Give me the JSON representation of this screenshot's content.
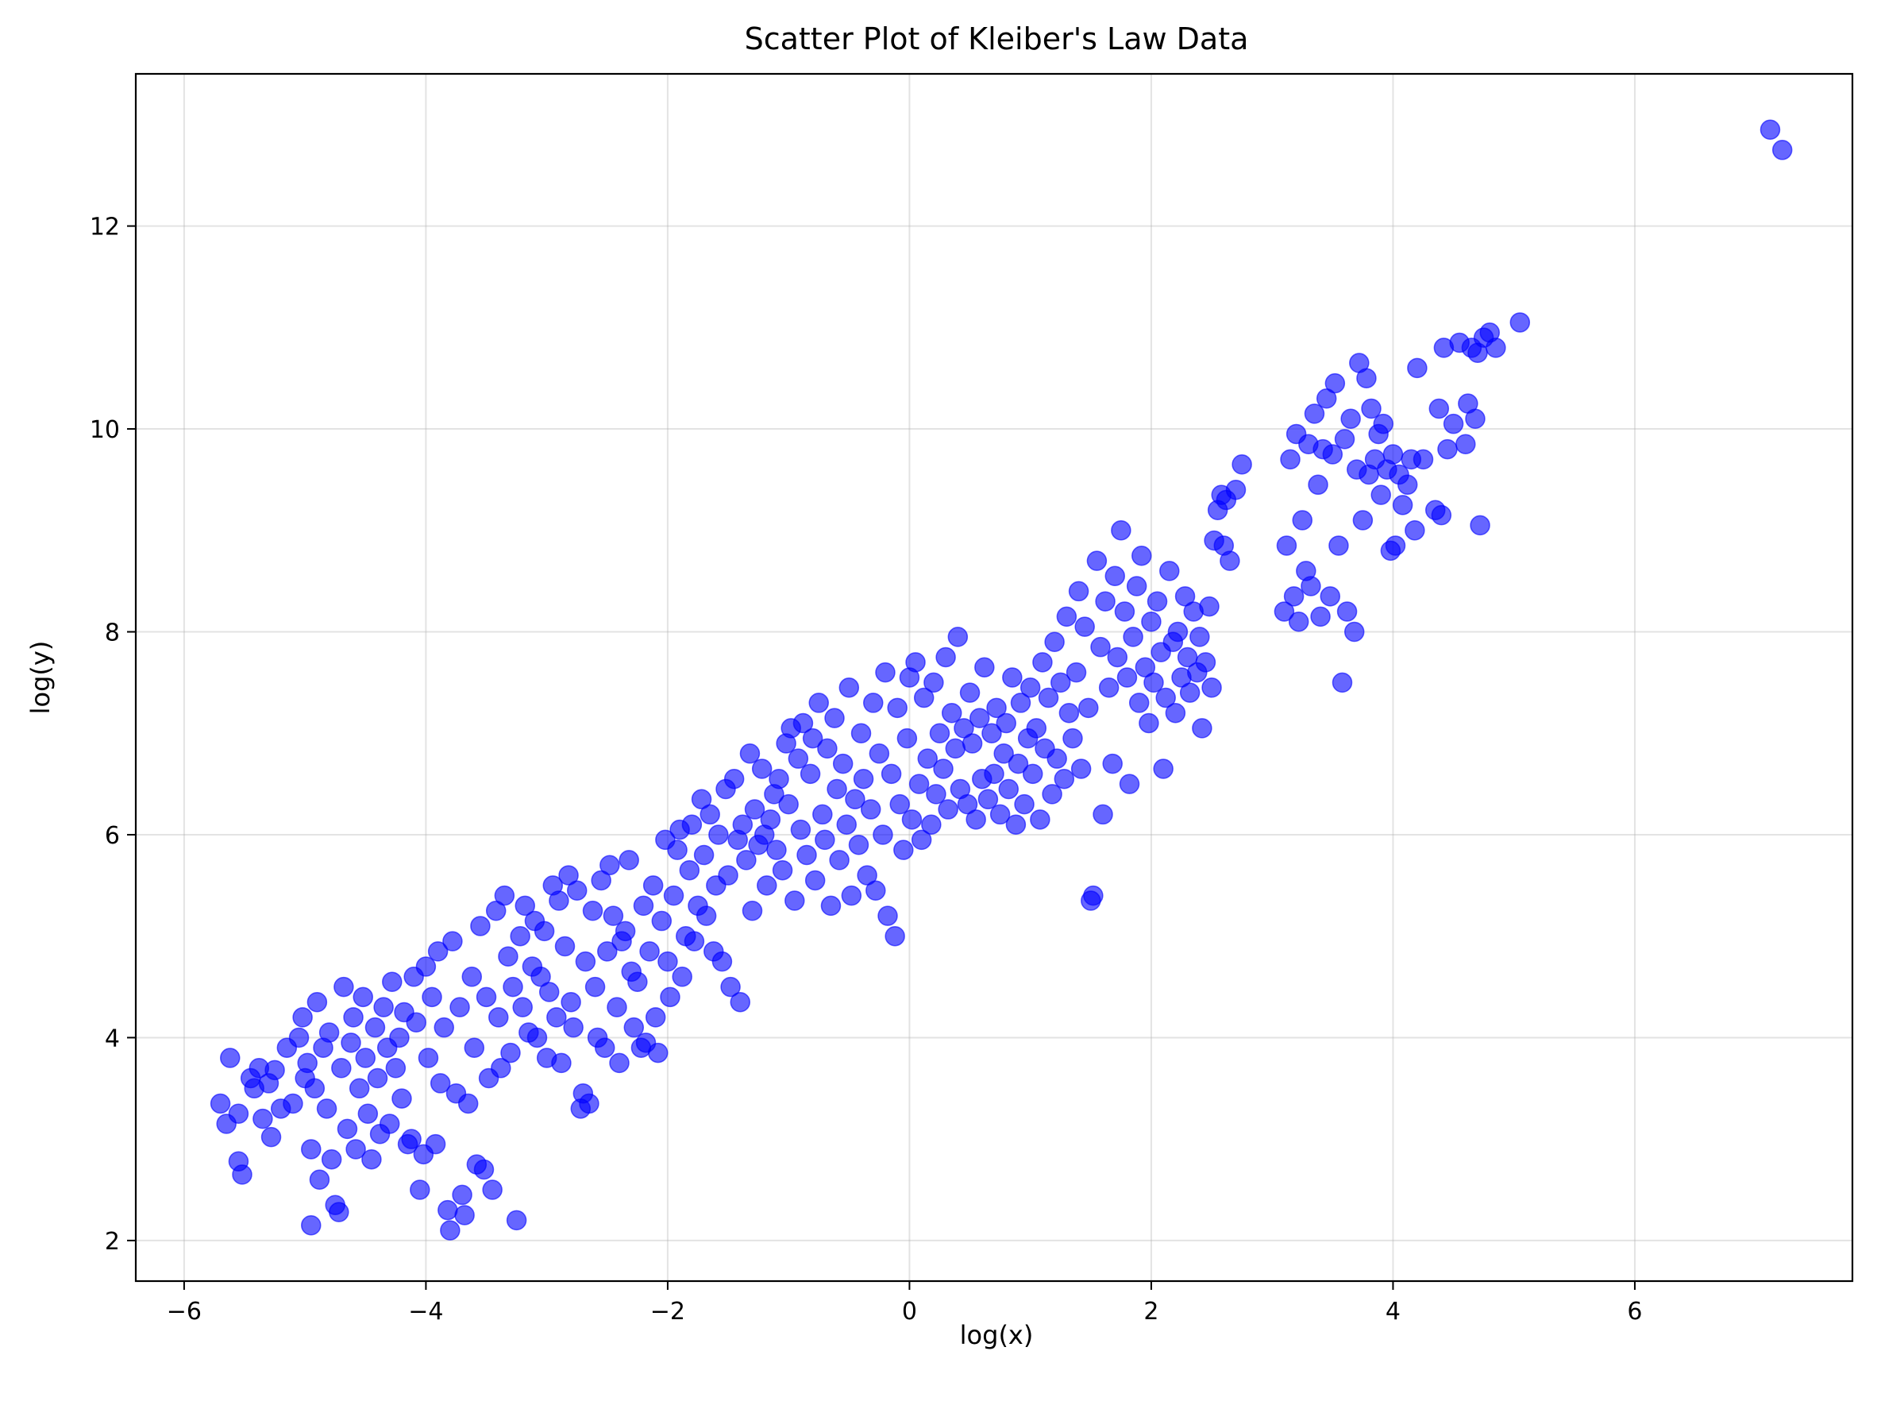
{
  "chart_data": {
    "type": "scatter",
    "title": "Scatter Plot of Kleiber's Law Data",
    "xlabel": "log(x)",
    "ylabel": "log(y)",
    "xlim": [
      -6.4,
      7.8
    ],
    "ylim": [
      1.6,
      13.5
    ],
    "xticks": [
      -6,
      -4,
      -2,
      0,
      2,
      4,
      6
    ],
    "xtick_labels": [
      "−6",
      "−4",
      "−2",
      "0",
      "2",
      "4",
      "6"
    ],
    "yticks": [
      2,
      4,
      6,
      8,
      10,
      12
    ],
    "ytick_labels": [
      "2",
      "4",
      "6",
      "8",
      "10",
      "12"
    ],
    "grid": true,
    "legend": "none",
    "marker_color": "#0000ff",
    "marker_alpha": 0.6,
    "points": [
      [
        -5.7,
        3.35
      ],
      [
        -5.65,
        3.15
      ],
      [
        -5.62,
        3.8
      ],
      [
        -5.55,
        3.25
      ],
      [
        -5.55,
        2.78
      ],
      [
        -5.52,
        2.65
      ],
      [
        -5.45,
        3.6
      ],
      [
        -5.42,
        3.5
      ],
      [
        -5.38,
        3.7
      ],
      [
        -5.35,
        3.2
      ],
      [
        -5.3,
        3.55
      ],
      [
        -5.28,
        3.02
      ],
      [
        -5.25,
        3.68
      ],
      [
        -5.2,
        3.3
      ],
      [
        -5.15,
        3.9
      ],
      [
        -5.1,
        3.35
      ],
      [
        -5.05,
        4.0
      ],
      [
        -5.02,
        4.2
      ],
      [
        -5.0,
        3.6
      ],
      [
        -4.98,
        3.75
      ],
      [
        -4.95,
        2.9
      ],
      [
        -4.95,
        2.15
      ],
      [
        -4.92,
        3.5
      ],
      [
        -4.9,
        4.35
      ],
      [
        -4.88,
        2.6
      ],
      [
        -4.85,
        3.9
      ],
      [
        -4.82,
        3.3
      ],
      [
        -4.8,
        4.05
      ],
      [
        -4.78,
        2.8
      ],
      [
        -4.75,
        2.35
      ],
      [
        -4.72,
        2.28
      ],
      [
        -4.7,
        3.7
      ],
      [
        -4.68,
        4.5
      ],
      [
        -4.65,
        3.1
      ],
      [
        -4.62,
        3.95
      ],
      [
        -4.6,
        4.2
      ],
      [
        -4.58,
        2.9
      ],
      [
        -4.55,
        3.5
      ],
      [
        -4.52,
        4.4
      ],
      [
        -4.5,
        3.8
      ],
      [
        -4.48,
        3.25
      ],
      [
        -4.45,
        2.8
      ],
      [
        -4.42,
        4.1
      ],
      [
        -4.4,
        3.6
      ],
      [
        -4.38,
        3.05
      ],
      [
        -4.35,
        4.3
      ],
      [
        -4.32,
        3.9
      ],
      [
        -4.3,
        3.15
      ],
      [
        -4.28,
        4.55
      ],
      [
        -4.25,
        3.7
      ],
      [
        -4.22,
        4.0
      ],
      [
        -4.2,
        3.4
      ],
      [
        -4.18,
        4.25
      ],
      [
        -4.15,
        2.95
      ],
      [
        -4.12,
        3.0
      ],
      [
        -4.1,
        4.6
      ],
      [
        -4.08,
        4.15
      ],
      [
        -4.05,
        2.5
      ],
      [
        -4.02,
        2.85
      ],
      [
        -4.0,
        4.7
      ],
      [
        -3.98,
        3.8
      ],
      [
        -3.95,
        4.4
      ],
      [
        -3.92,
        2.95
      ],
      [
        -3.9,
        4.85
      ],
      [
        -3.88,
        3.55
      ],
      [
        -3.85,
        4.1
      ],
      [
        -3.82,
        2.3
      ],
      [
        -3.8,
        2.1
      ],
      [
        -3.78,
        4.95
      ],
      [
        -3.75,
        3.45
      ],
      [
        -3.72,
        4.3
      ],
      [
        -3.7,
        2.45
      ],
      [
        -3.68,
        2.25
      ],
      [
        -3.65,
        3.35
      ],
      [
        -3.62,
        4.6
      ],
      [
        -3.6,
        3.9
      ],
      [
        -3.58,
        2.75
      ],
      [
        -3.55,
        5.1
      ],
      [
        -3.52,
        2.7
      ],
      [
        -3.5,
        4.4
      ],
      [
        -3.48,
        3.6
      ],
      [
        -3.45,
        2.5
      ],
      [
        -3.42,
        5.25
      ],
      [
        -3.4,
        4.2
      ],
      [
        -3.38,
        3.7
      ],
      [
        -3.35,
        5.4
      ],
      [
        -3.32,
        4.8
      ],
      [
        -3.3,
        3.85
      ],
      [
        -3.28,
        4.5
      ],
      [
        -3.25,
        2.2
      ],
      [
        -3.22,
        5.0
      ],
      [
        -3.2,
        4.3
      ],
      [
        -3.18,
        5.3
      ],
      [
        -3.15,
        4.05
      ],
      [
        -3.12,
        4.7
      ],
      [
        -3.1,
        5.15
      ],
      [
        -3.08,
        4.0
      ],
      [
        -3.05,
        4.6
      ],
      [
        -3.02,
        5.05
      ],
      [
        -3.0,
        3.8
      ],
      [
        -2.98,
        4.45
      ],
      [
        -2.95,
        5.5
      ],
      [
        -2.92,
        4.2
      ],
      [
        -2.9,
        5.35
      ],
      [
        -2.88,
        3.75
      ],
      [
        -2.85,
        4.9
      ],
      [
        -2.82,
        5.6
      ],
      [
        -2.8,
        4.35
      ],
      [
        -2.78,
        4.1
      ],
      [
        -2.75,
        5.45
      ],
      [
        -2.72,
        3.3
      ],
      [
        -2.7,
        3.45
      ],
      [
        -2.68,
        4.75
      ],
      [
        -2.65,
        3.35
      ],
      [
        -2.62,
        5.25
      ],
      [
        -2.6,
        4.5
      ],
      [
        -2.58,
        4.0
      ],
      [
        -2.55,
        5.55
      ],
      [
        -2.52,
        3.9
      ],
      [
        -2.5,
        4.85
      ],
      [
        -2.48,
        5.7
      ],
      [
        -2.45,
        5.2
      ],
      [
        -2.42,
        4.3
      ],
      [
        -2.4,
        3.75
      ],
      [
        -2.38,
        4.95
      ],
      [
        -2.35,
        5.05
      ],
      [
        -2.32,
        5.75
      ],
      [
        -2.3,
        4.65
      ],
      [
        -2.28,
        4.1
      ],
      [
        -2.25,
        4.55
      ],
      [
        -2.22,
        3.9
      ],
      [
        -2.2,
        5.3
      ],
      [
        -2.18,
        3.95
      ],
      [
        -2.15,
        4.85
      ],
      [
        -2.12,
        5.5
      ],
      [
        -2.1,
        4.2
      ],
      [
        -2.08,
        3.85
      ],
      [
        -2.05,
        5.15
      ],
      [
        -2.02,
        5.95
      ],
      [
        -2.0,
        4.75
      ],
      [
        -1.98,
        4.4
      ],
      [
        -1.95,
        5.4
      ],
      [
        -1.92,
        5.85
      ],
      [
        -1.9,
        6.05
      ],
      [
        -1.88,
        4.6
      ],
      [
        -1.85,
        5.0
      ],
      [
        -1.82,
        5.65
      ],
      [
        -1.8,
        6.1
      ],
      [
        -1.78,
        4.95
      ],
      [
        -1.75,
        5.3
      ],
      [
        -1.72,
        6.35
      ],
      [
        -1.7,
        5.8
      ],
      [
        -1.68,
        5.2
      ],
      [
        -1.65,
        6.2
      ],
      [
        -1.62,
        4.85
      ],
      [
        -1.6,
        5.5
      ],
      [
        -1.58,
        6.0
      ],
      [
        -1.55,
        4.75
      ],
      [
        -1.52,
        6.45
      ],
      [
        -1.5,
        5.6
      ],
      [
        -1.48,
        4.5
      ],
      [
        -1.45,
        6.55
      ],
      [
        -1.42,
        5.95
      ],
      [
        -1.4,
        4.35
      ],
      [
        -1.38,
        6.1
      ],
      [
        -1.35,
        5.75
      ],
      [
        -1.32,
        6.8
      ],
      [
        -1.3,
        5.25
      ],
      [
        -1.28,
        6.25
      ],
      [
        -1.25,
        5.9
      ],
      [
        -1.22,
        6.65
      ],
      [
        -1.2,
        6.0
      ],
      [
        -1.18,
        5.5
      ],
      [
        -1.15,
        6.15
      ],
      [
        -1.12,
        6.4
      ],
      [
        -1.1,
        5.85
      ],
      [
        -1.08,
        6.55
      ],
      [
        -1.05,
        5.65
      ],
      [
        -1.02,
        6.9
      ],
      [
        -1.0,
        6.3
      ],
      [
        -0.98,
        7.05
      ],
      [
        -0.95,
        5.35
      ],
      [
        -0.92,
        6.75
      ],
      [
        -0.9,
        6.05
      ],
      [
        -0.88,
        7.1
      ],
      [
        -0.85,
        5.8
      ],
      [
        -0.82,
        6.6
      ],
      [
        -0.8,
        6.95
      ],
      [
        -0.78,
        5.55
      ],
      [
        -0.75,
        7.3
      ],
      [
        -0.72,
        6.2
      ],
      [
        -0.7,
        5.95
      ],
      [
        -0.68,
        6.85
      ],
      [
        -0.65,
        5.3
      ],
      [
        -0.62,
        7.15
      ],
      [
        -0.6,
        6.45
      ],
      [
        -0.58,
        5.75
      ],
      [
        -0.55,
        6.7
      ],
      [
        -0.52,
        6.1
      ],
      [
        -0.5,
        7.45
      ],
      [
        -0.48,
        5.4
      ],
      [
        -0.45,
        6.35
      ],
      [
        -0.42,
        5.9
      ],
      [
        -0.4,
        7.0
      ],
      [
        -0.38,
        6.55
      ],
      [
        -0.35,
        5.6
      ],
      [
        -0.32,
        6.25
      ],
      [
        -0.3,
        7.3
      ],
      [
        -0.28,
        5.45
      ],
      [
        -0.25,
        6.8
      ],
      [
        -0.22,
        6.0
      ],
      [
        -0.2,
        7.6
      ],
      [
        -0.18,
        5.2
      ],
      [
        -0.15,
        6.6
      ],
      [
        -0.12,
        5.0
      ],
      [
        -0.1,
        7.25
      ],
      [
        -0.08,
        6.3
      ],
      [
        -0.05,
        5.85
      ],
      [
        -0.02,
        6.95
      ],
      [
        0.0,
        7.55
      ],
      [
        0.02,
        6.15
      ],
      [
        0.05,
        7.7
      ],
      [
        0.08,
        6.5
      ],
      [
        0.1,
        5.95
      ],
      [
        0.12,
        7.35
      ],
      [
        0.15,
        6.75
      ],
      [
        0.18,
        6.1
      ],
      [
        0.2,
        7.5
      ],
      [
        0.22,
        6.4
      ],
      [
        0.25,
        7.0
      ],
      [
        0.28,
        6.65
      ],
      [
        0.3,
        7.75
      ],
      [
        0.32,
        6.25
      ],
      [
        0.35,
        7.2
      ],
      [
        0.38,
        6.85
      ],
      [
        0.4,
        7.95
      ],
      [
        0.42,
        6.45
      ],
      [
        0.45,
        7.05
      ],
      [
        0.48,
        6.3
      ],
      [
        0.5,
        7.4
      ],
      [
        0.52,
        6.9
      ],
      [
        0.55,
        6.15
      ],
      [
        0.58,
        7.15
      ],
      [
        0.6,
        6.55
      ],
      [
        0.62,
        7.65
      ],
      [
        0.65,
        6.35
      ],
      [
        0.68,
        7.0
      ],
      [
        0.7,
        6.6
      ],
      [
        0.72,
        7.25
      ],
      [
        0.75,
        6.2
      ],
      [
        0.78,
        6.8
      ],
      [
        0.8,
        7.1
      ],
      [
        0.82,
        6.45
      ],
      [
        0.85,
        7.55
      ],
      [
        0.88,
        6.1
      ],
      [
        0.9,
        6.7
      ],
      [
        0.92,
        7.3
      ],
      [
        0.95,
        6.3
      ],
      [
        0.98,
        6.95
      ],
      [
        1.0,
        7.45
      ],
      [
        1.02,
        6.6
      ],
      [
        1.05,
        7.05
      ],
      [
        1.08,
        6.15
      ],
      [
        1.1,
        7.7
      ],
      [
        1.12,
        6.85
      ],
      [
        1.15,
        7.35
      ],
      [
        1.18,
        6.4
      ],
      [
        1.2,
        7.9
      ],
      [
        1.22,
        6.75
      ],
      [
        1.25,
        7.5
      ],
      [
        1.28,
        6.55
      ],
      [
        1.3,
        8.15
      ],
      [
        1.32,
        7.2
      ],
      [
        1.35,
        6.95
      ],
      [
        1.38,
        7.6
      ],
      [
        1.4,
        8.4
      ],
      [
        1.42,
        6.65
      ],
      [
        1.45,
        8.05
      ],
      [
        1.48,
        7.25
      ],
      [
        1.5,
        5.35
      ],
      [
        1.52,
        5.4
      ],
      [
        1.55,
        8.7
      ],
      [
        1.58,
        7.85
      ],
      [
        1.6,
        6.2
      ],
      [
        1.62,
        8.3
      ],
      [
        1.65,
        7.45
      ],
      [
        1.68,
        6.7
      ],
      [
        1.7,
        8.55
      ],
      [
        1.72,
        7.75
      ],
      [
        1.75,
        9.0
      ],
      [
        1.78,
        8.2
      ],
      [
        1.8,
        7.55
      ],
      [
        1.82,
        6.5
      ],
      [
        1.85,
        7.95
      ],
      [
        1.88,
        8.45
      ],
      [
        1.9,
        7.3
      ],
      [
        1.92,
        8.75
      ],
      [
        1.95,
        7.65
      ],
      [
        1.98,
        7.1
      ],
      [
        2.0,
        8.1
      ],
      [
        2.02,
        7.5
      ],
      [
        2.05,
        8.3
      ],
      [
        2.08,
        7.8
      ],
      [
        2.1,
        6.65
      ],
      [
        2.12,
        7.35
      ],
      [
        2.15,
        8.6
      ],
      [
        2.18,
        7.9
      ],
      [
        2.2,
        7.2
      ],
      [
        2.22,
        8.0
      ],
      [
        2.25,
        7.55
      ],
      [
        2.28,
        8.35
      ],
      [
        2.3,
        7.75
      ],
      [
        2.32,
        7.4
      ],
      [
        2.35,
        8.2
      ],
      [
        2.38,
        7.6
      ],
      [
        2.4,
        7.95
      ],
      [
        2.42,
        7.05
      ],
      [
        2.45,
        7.7
      ],
      [
        2.48,
        8.25
      ],
      [
        2.5,
        7.45
      ],
      [
        2.52,
        8.9
      ],
      [
        2.55,
        9.2
      ],
      [
        2.58,
        9.35
      ],
      [
        2.6,
        8.85
      ],
      [
        2.62,
        9.3
      ],
      [
        2.65,
        8.7
      ],
      [
        2.7,
        9.4
      ],
      [
        2.75,
        9.65
      ],
      [
        3.1,
        8.2
      ],
      [
        3.12,
        8.85
      ],
      [
        3.15,
        9.7
      ],
      [
        3.18,
        8.35
      ],
      [
        3.2,
        9.95
      ],
      [
        3.22,
        8.1
      ],
      [
        3.25,
        9.1
      ],
      [
        3.28,
        8.6
      ],
      [
        3.3,
        9.85
      ],
      [
        3.32,
        8.45
      ],
      [
        3.35,
        10.15
      ],
      [
        3.38,
        9.45
      ],
      [
        3.4,
        8.15
      ],
      [
        3.42,
        9.8
      ],
      [
        3.45,
        10.3
      ],
      [
        3.48,
        8.35
      ],
      [
        3.5,
        9.75
      ],
      [
        3.52,
        10.45
      ],
      [
        3.55,
        8.85
      ],
      [
        3.58,
        7.5
      ],
      [
        3.6,
        9.9
      ],
      [
        3.62,
        8.2
      ],
      [
        3.65,
        10.1
      ],
      [
        3.68,
        8.0
      ],
      [
        3.7,
        9.6
      ],
      [
        3.72,
        10.65
      ],
      [
        3.75,
        9.1
      ],
      [
        3.78,
        10.5
      ],
      [
        3.8,
        9.55
      ],
      [
        3.82,
        10.2
      ],
      [
        3.85,
        9.7
      ],
      [
        3.88,
        9.95
      ],
      [
        3.9,
        9.35
      ],
      [
        3.92,
        10.05
      ],
      [
        3.95,
        9.6
      ],
      [
        3.98,
        8.8
      ],
      [
        4.0,
        9.75
      ],
      [
        4.02,
        8.85
      ],
      [
        4.05,
        9.55
      ],
      [
        4.08,
        9.25
      ],
      [
        4.12,
        9.45
      ],
      [
        4.15,
        9.7
      ],
      [
        4.18,
        9.0
      ],
      [
        4.2,
        10.6
      ],
      [
        4.25,
        9.7
      ],
      [
        4.35,
        9.2
      ],
      [
        4.38,
        10.2
      ],
      [
        4.4,
        9.15
      ],
      [
        4.42,
        10.8
      ],
      [
        4.45,
        9.8
      ],
      [
        4.5,
        10.05
      ],
      [
        4.55,
        10.85
      ],
      [
        4.6,
        9.85
      ],
      [
        4.62,
        10.25
      ],
      [
        4.65,
        10.8
      ],
      [
        4.68,
        10.1
      ],
      [
        4.7,
        10.75
      ],
      [
        4.72,
        9.05
      ],
      [
        4.75,
        10.9
      ],
      [
        4.8,
        10.95
      ],
      [
        4.85,
        10.8
      ],
      [
        5.05,
        11.05
      ],
      [
        7.12,
        12.95
      ],
      [
        7.22,
        12.75
      ]
    ]
  }
}
